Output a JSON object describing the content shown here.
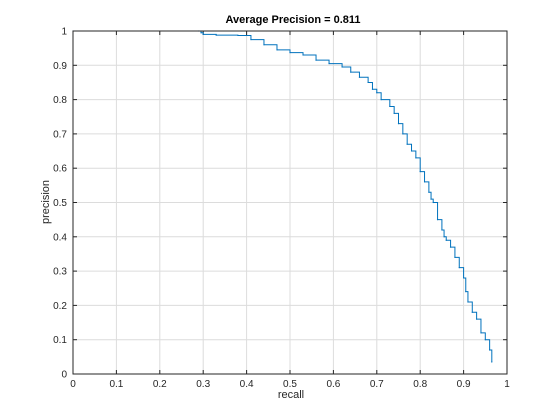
{
  "chart_data": {
    "type": "line",
    "title": "Average Precision = 0.811",
    "xlabel": "recall",
    "ylabel": "precision",
    "xlim": [
      0,
      1
    ],
    "ylim": [
      0,
      1
    ],
    "xticks": [
      0,
      0.1,
      0.2,
      0.3,
      0.4,
      0.5,
      0.6,
      0.7,
      0.8,
      0.9,
      1
    ],
    "yticks": [
      0,
      0.1,
      0.2,
      0.3,
      0.4,
      0.5,
      0.6,
      0.7,
      0.8,
      0.9,
      1
    ],
    "xtick_labels": [
      "0",
      "0.1",
      "0.2",
      "0.3",
      "0.4",
      "0.5",
      "0.6",
      "0.7",
      "0.8",
      "0.9",
      "1"
    ],
    "ytick_labels": [
      "0",
      "0.1",
      "0.2",
      "0.3",
      "0.4",
      "0.5",
      "0.6",
      "0.7",
      "0.8",
      "0.9",
      "1"
    ],
    "grid": true,
    "series": [
      {
        "color": "#0072bd",
        "x": [
          0,
          0.29,
          0.295,
          0.3,
          0.33,
          0.38,
          0.41,
          0.44,
          0.47,
          0.5,
          0.53,
          0.56,
          0.59,
          0.62,
          0.64,
          0.66,
          0.68,
          0.69,
          0.7,
          0.71,
          0.73,
          0.74,
          0.75,
          0.76,
          0.77,
          0.78,
          0.79,
          0.8,
          0.81,
          0.82,
          0.825,
          0.83,
          0.84,
          0.85,
          0.855,
          0.86,
          0.87,
          0.88,
          0.89,
          0.9,
          0.905,
          0.91,
          0.92,
          0.93,
          0.94,
          0.95,
          0.96,
          0.965
        ],
        "y": [
          1.0,
          1.0,
          0.995,
          0.99,
          0.988,
          0.987,
          0.975,
          0.96,
          0.945,
          0.937,
          0.93,
          0.915,
          0.905,
          0.895,
          0.88,
          0.865,
          0.85,
          0.83,
          0.82,
          0.8,
          0.78,
          0.76,
          0.73,
          0.7,
          0.67,
          0.65,
          0.63,
          0.59,
          0.56,
          0.53,
          0.51,
          0.5,
          0.45,
          0.42,
          0.4,
          0.39,
          0.37,
          0.34,
          0.31,
          0.28,
          0.24,
          0.21,
          0.18,
          0.16,
          0.12,
          0.1,
          0.07,
          0.035
        ]
      }
    ]
  }
}
